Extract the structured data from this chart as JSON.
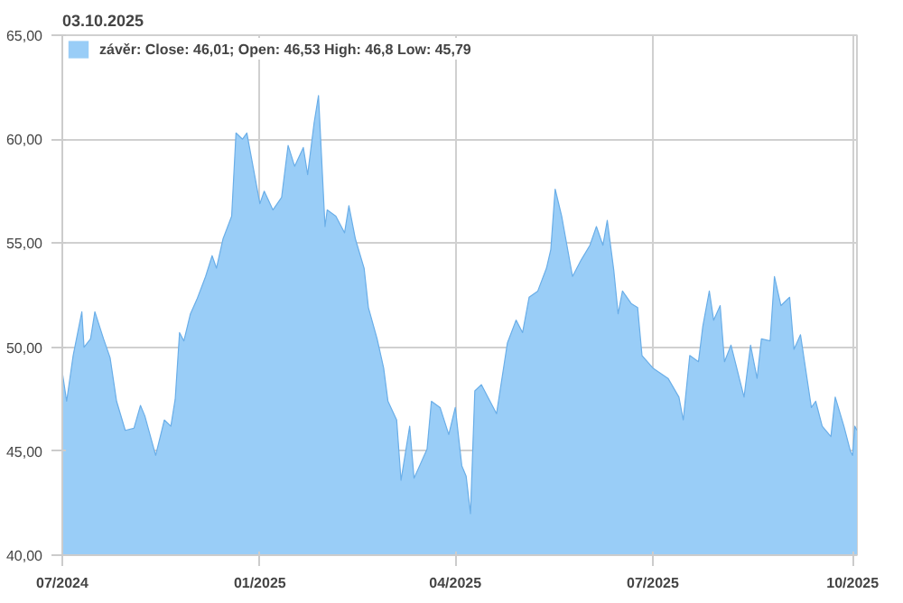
{
  "chart_data": {
    "type": "area",
    "title": "03.10.2025",
    "series": [
      {
        "name": "závěr: Close: 46,01; Open: 46,53 High: 46,8 Low: 45,79",
        "color": "#99cdf7",
        "x": [
          "2024-10-02",
          "2024-10-04",
          "2024-10-07",
          "2024-10-11",
          "2024-10-12",
          "2024-10-15",
          "2024-10-17",
          "2024-10-21",
          "2024-10-24",
          "2024-10-27",
          "2024-10-31",
          "2024-11-04",
          "2024-11-07",
          "2024-11-09",
          "2024-11-14",
          "2024-11-18",
          "2024-11-21",
          "2024-11-23",
          "2024-11-25",
          "2024-11-27",
          "2024-11-30",
          "2024-12-03",
          "2024-12-07",
          "2024-12-10",
          "2024-12-12",
          "2024-12-15",
          "2024-12-19",
          "2024-12-21",
          "2024-12-24",
          "2024-12-26",
          "2024-12-29",
          "2025-01-01",
          "2025-01-03",
          "2025-01-07",
          "2025-01-11",
          "2025-01-14",
          "2025-01-17",
          "2025-01-21",
          "2025-01-23",
          "2025-01-26",
          "2025-01-28",
          "2025-01-31",
          "2025-02-01",
          "2025-02-05",
          "2025-02-09",
          "2025-02-11",
          "2025-02-14",
          "2025-02-18",
          "2025-02-20",
          "2025-02-24",
          "2025-02-27",
          "2025-03-01",
          "2025-03-05",
          "2025-03-07",
          "2025-03-11",
          "2025-03-13",
          "2025-03-16",
          "2025-03-19",
          "2025-03-21",
          "2025-03-25",
          "2025-03-29",
          "2025-04-01",
          "2025-04-04",
          "2025-04-06",
          "2025-04-08",
          "2025-04-10",
          "2025-04-13",
          "2025-04-17",
          "2025-04-20",
          "2025-04-25",
          "2025-04-29",
          "2025-05-02",
          "2025-05-05",
          "2025-05-09",
          "2025-05-13",
          "2025-05-15",
          "2025-05-17",
          "2025-05-20",
          "2025-05-25",
          "2025-05-29",
          "2025-06-02",
          "2025-06-05",
          "2025-06-08",
          "2025-06-10",
          "2025-06-13",
          "2025-06-15",
          "2025-06-17",
          "2025-06-21",
          "2025-06-24",
          "2025-06-26",
          "2025-07-01",
          "2025-07-08",
          "2025-07-13",
          "2025-07-15",
          "2025-07-18",
          "2025-07-22",
          "2025-07-24",
          "2025-07-27",
          "2025-07-29",
          "2025-08-01",
          "2025-08-03",
          "2025-08-06",
          "2025-08-12",
          "2025-08-15",
          "2025-08-18",
          "2025-08-20",
          "2025-08-24",
          "2025-08-26",
          "2025-08-29",
          "2025-09-02",
          "2025-09-04",
          "2025-09-07",
          "2025-09-12",
          "2025-09-14",
          "2025-09-17",
          "2025-09-21",
          "2025-09-23",
          "2025-09-27",
          "2025-09-30",
          "2025-10-01",
          "2025-10-02",
          "2025-10-03"
        ],
        "values": [
          48.8,
          47.4,
          49.6,
          51.7,
          50.0,
          50.4,
          51.7,
          50.4,
          49.5,
          47.4,
          46.0,
          46.1,
          47.2,
          46.7,
          44.8,
          46.5,
          46.2,
          47.5,
          50.7,
          50.3,
          51.6,
          52.3,
          53.4,
          54.4,
          53.8,
          55.2,
          56.3,
          60.3,
          60.0,
          60.3,
          58.6,
          56.9,
          57.5,
          56.6,
          57.2,
          59.7,
          58.7,
          59.6,
          58.3,
          60.8,
          62.1,
          55.8,
          56.6,
          56.3,
          55.5,
          56.8,
          55.2,
          53.8,
          51.9,
          50.4,
          49.0,
          47.4,
          46.5,
          43.6,
          46.2,
          43.7,
          44.4,
          45.1,
          47.4,
          47.1,
          45.8,
          47.1,
          44.3,
          43.8,
          42.0,
          47.9,
          48.2,
          47.4,
          46.8,
          50.2,
          51.3,
          50.7,
          52.4,
          52.7,
          53.8,
          54.7,
          57.6,
          56.3,
          53.4,
          54.2,
          54.9,
          55.8,
          54.9,
          56.1,
          53.7,
          51.6,
          52.7,
          52.1,
          51.9,
          49.6,
          49.0,
          48.5,
          47.6,
          46.5,
          49.6,
          49.3,
          51.0,
          52.7,
          51.3,
          52.0,
          49.3,
          50.1,
          47.6,
          50.1,
          48.5,
          50.4,
          50.3,
          53.4,
          52.0,
          52.4,
          49.9,
          50.6,
          47.1,
          47.4,
          46.2,
          45.7,
          47.6,
          46.2,
          45.0,
          44.8,
          46.2,
          46.0
        ]
      }
    ],
    "xlim": [
      "2024-10-02",
      "2025-10-03"
    ],
    "xticks": [
      {
        "value": "2024-10-02",
        "label": "07/2024"
      },
      {
        "value": "2025-01-01",
        "label": "01/2025"
      },
      {
        "value": "2025-04-01",
        "label": "04/2025"
      },
      {
        "value": "2025-07-01",
        "label": "07/2025"
      },
      {
        "value": "2025-10-01",
        "label": "10/2025"
      }
    ],
    "ylim": [
      40,
      65
    ],
    "yticks": [
      {
        "value": 40,
        "label": "40,00"
      },
      {
        "value": 45,
        "label": "45,00"
      },
      {
        "value": 50,
        "label": "50,00"
      },
      {
        "value": 55,
        "label": "55,00"
      },
      {
        "value": 60,
        "label": "60,00"
      },
      {
        "value": 65,
        "label": "65,00"
      }
    ],
    "grid": true,
    "legend": "top"
  }
}
